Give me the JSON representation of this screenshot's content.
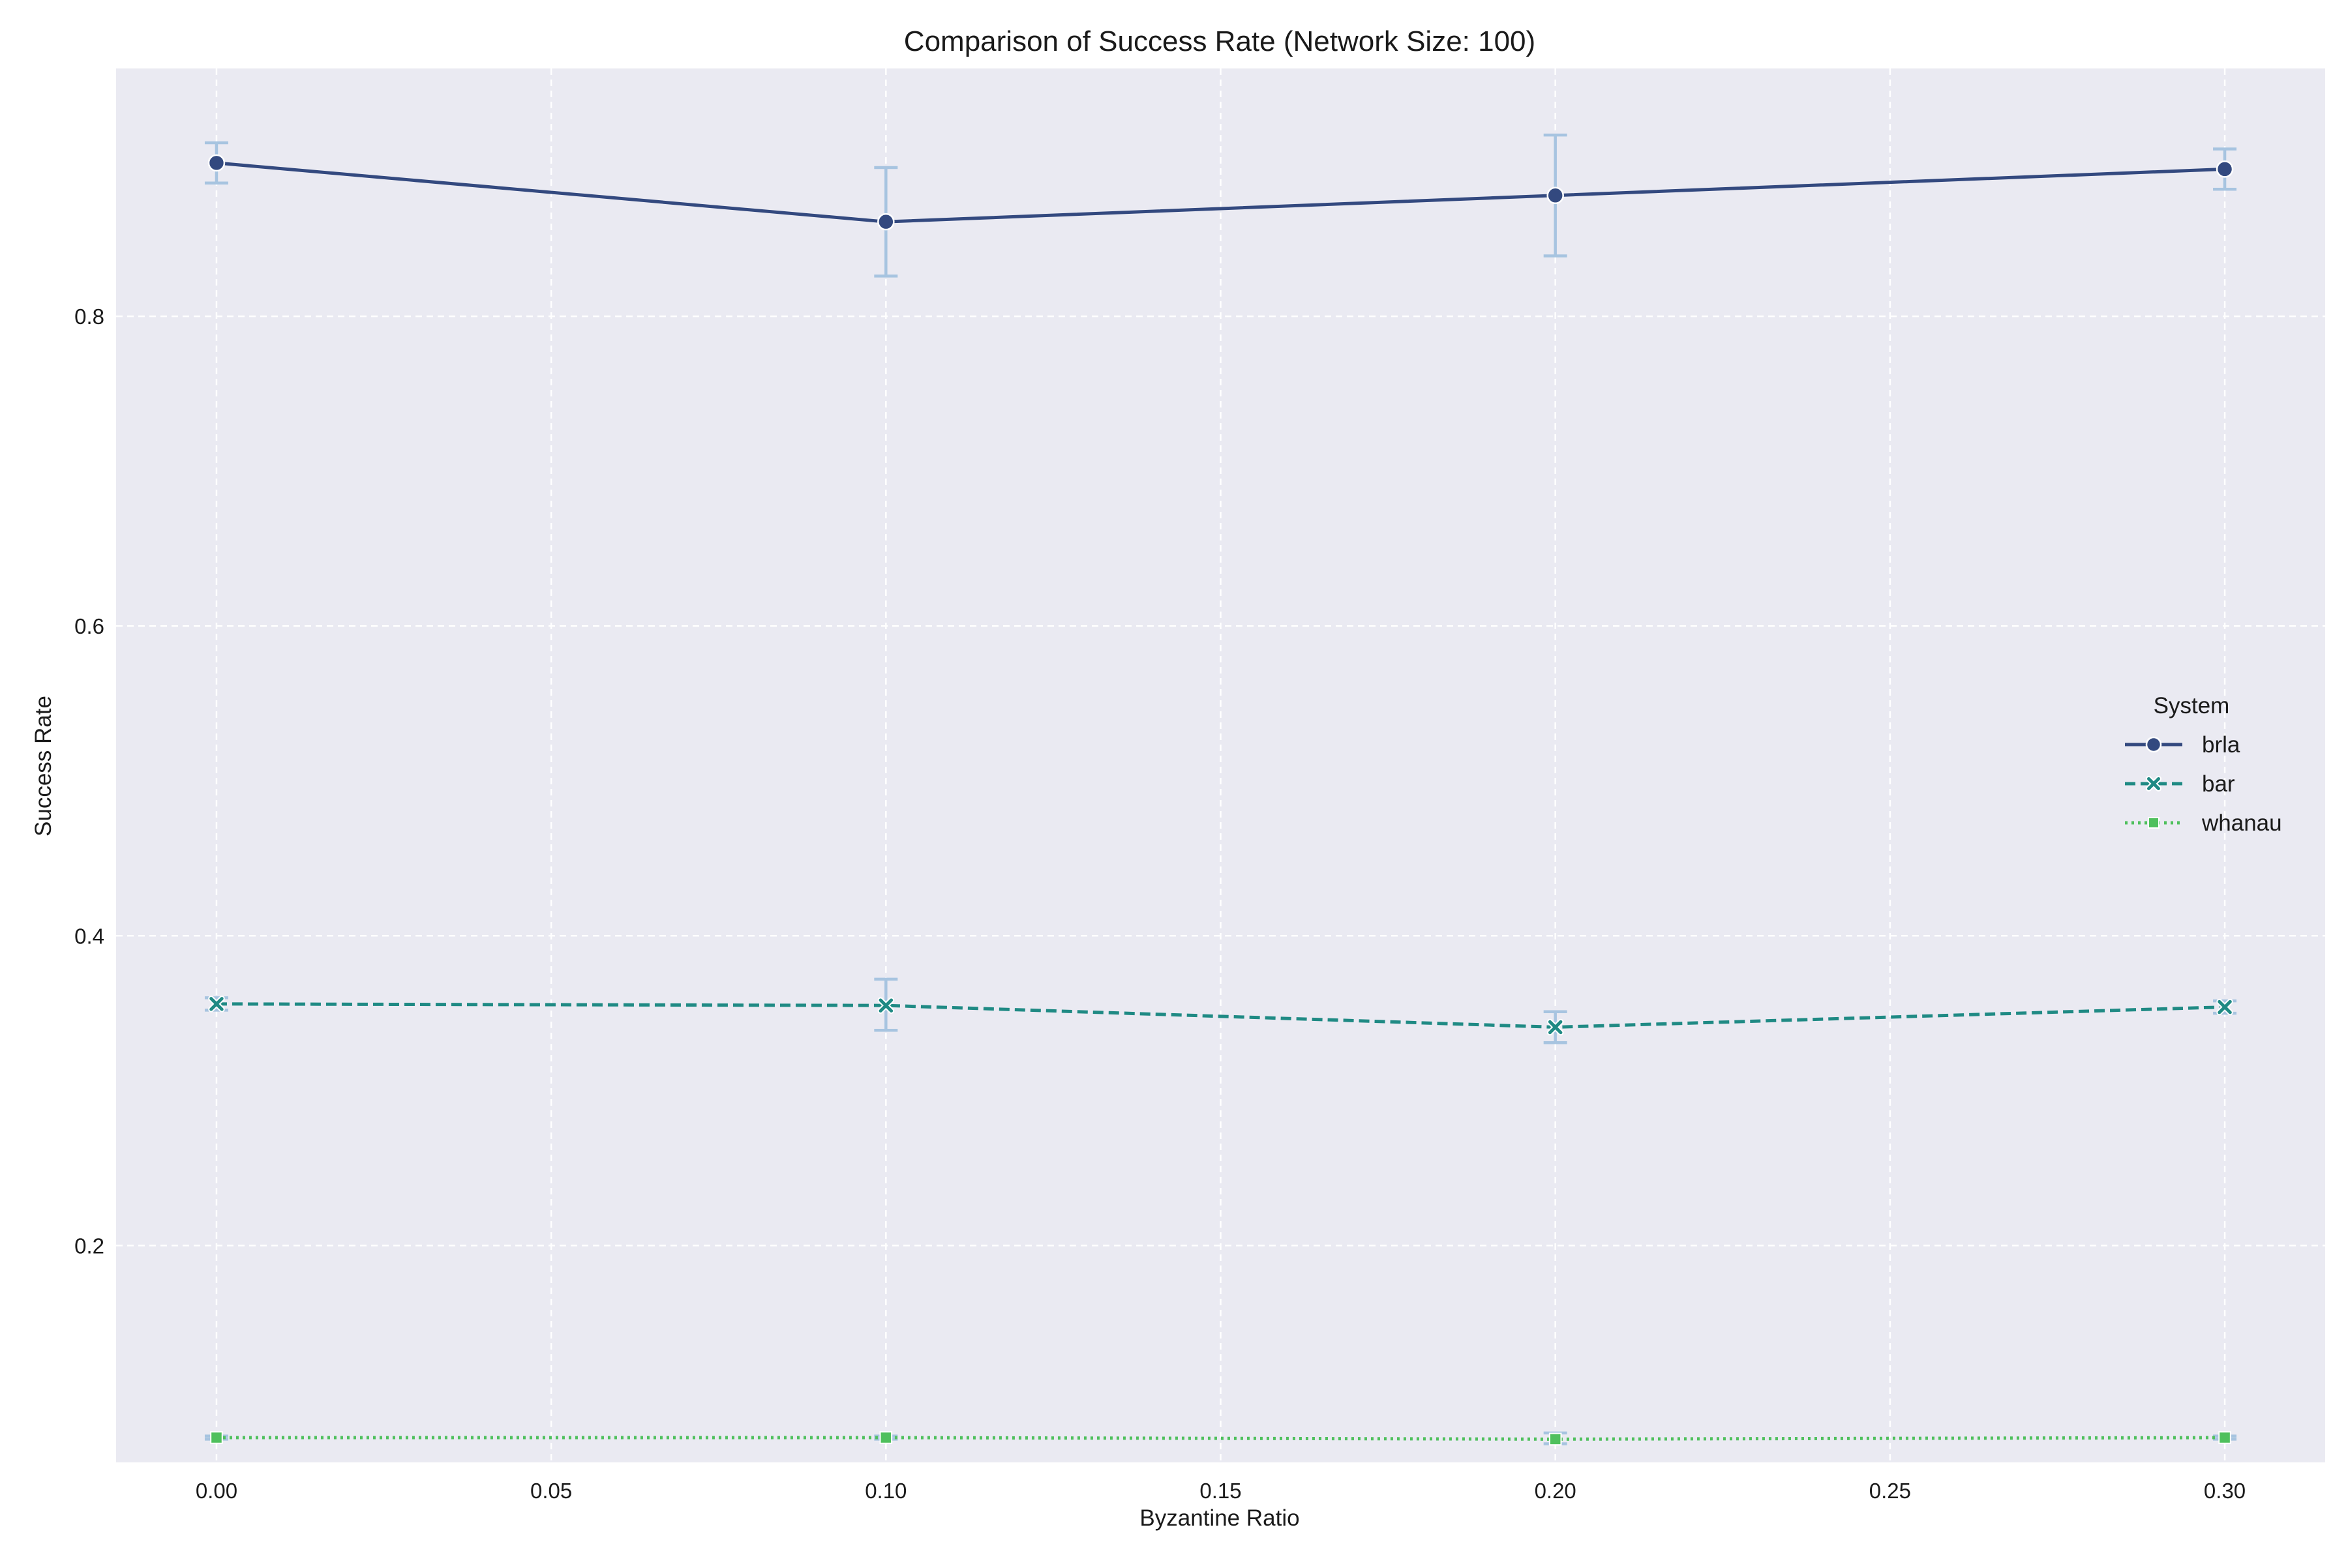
{
  "colors": {
    "background": "#ffffff",
    "plot_background": "#eaeaf2",
    "grid": "#ffffff",
    "error_bar": "#a7c4e0",
    "brla": "#33497f",
    "bar": "#1f8a84",
    "whanau": "#4fc05d"
  },
  "chart_data": {
    "type": "line",
    "title": "Comparison of Success Rate (Network Size: 100)",
    "xlabel": "Byzantine Ratio",
    "ylabel": "Success Rate",
    "xlim": [
      -0.015,
      0.315
    ],
    "ylim": [
      0.06,
      0.96
    ],
    "x_ticks": [
      0.0,
      0.05,
      0.1,
      0.15,
      0.2,
      0.25,
      0.3
    ],
    "x_tick_labels": [
      "0.00",
      "0.05",
      "0.10",
      "0.15",
      "0.20",
      "0.25",
      "0.30"
    ],
    "y_ticks": [
      0.2,
      0.4,
      0.6,
      0.8
    ],
    "y_tick_labels": [
      "0.2",
      "0.4",
      "0.6",
      "0.8"
    ],
    "grid": true,
    "legend": {
      "title": "System",
      "placement": "center-right"
    },
    "x": [
      0.0,
      0.1,
      0.2,
      0.3
    ],
    "series": [
      {
        "name": "brla",
        "marker": "circle",
        "line_style": "solid",
        "color": "#33497f",
        "values": [
          0.899,
          0.861,
          0.878,
          0.895
        ],
        "error_low": [
          0.886,
          0.826,
          0.839,
          0.882
        ],
        "error_high": [
          0.912,
          0.896,
          0.917,
          0.908
        ]
      },
      {
        "name": "bar",
        "marker": "x",
        "line_style": "dashed",
        "color": "#1f8a84",
        "values": [
          0.356,
          0.355,
          0.341,
          0.354
        ],
        "error_low": [
          0.352,
          0.339,
          0.331,
          0.35
        ],
        "error_high": [
          0.36,
          0.372,
          0.351,
          0.358
        ]
      },
      {
        "name": "whanau",
        "marker": "square",
        "line_style": "dotted",
        "color": "#4fc05d",
        "values": [
          0.076,
          0.076,
          0.075,
          0.076
        ],
        "error_low": [
          0.075,
          0.075,
          0.072,
          0.075
        ],
        "error_high": [
          0.077,
          0.077,
          0.079,
          0.077
        ]
      }
    ]
  }
}
